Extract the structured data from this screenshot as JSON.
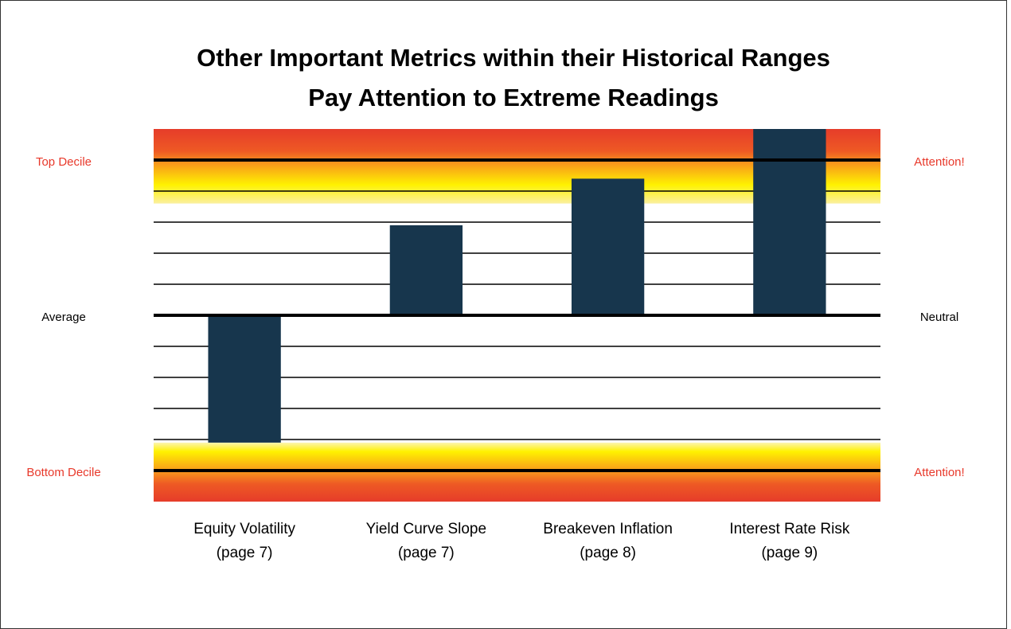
{
  "chart_data": {
    "type": "bar",
    "title": "Other Important Metrics within their Historical Ranges",
    "subtitle": "Pay Attention to Extreme Readings",
    "categories": [
      "Equity Volatility",
      "Yield Curve Slope",
      "Breakeven Inflation",
      "Interest Rate Risk"
    ],
    "category_notes": [
      "(page 7)",
      "(page 7)",
      "(page 8)",
      "(page 9)"
    ],
    "values": [
      -4.1,
      2.9,
      4.4,
      6
    ],
    "color": "#17364d",
    "ylim": [
      -6,
      6
    ],
    "yticks": [
      -5,
      -4,
      -3,
      -2,
      -1,
      0,
      1,
      2,
      3,
      4,
      5
    ],
    "grid": true,
    "levels": [
      {
        "value": 5,
        "left": "Top Decile",
        "right": "Attention!",
        "color": "#e8392b"
      },
      {
        "value": 0,
        "left": "Average",
        "right": "Neutral",
        "color": "#000000"
      },
      {
        "value": -5,
        "left": "Bottom Decile",
        "right": "Attention!",
        "color": "#e8392b"
      }
    ],
    "highlight_zones": [
      [
        3.6,
        6
      ],
      [
        -6,
        -4.1
      ]
    ]
  }
}
